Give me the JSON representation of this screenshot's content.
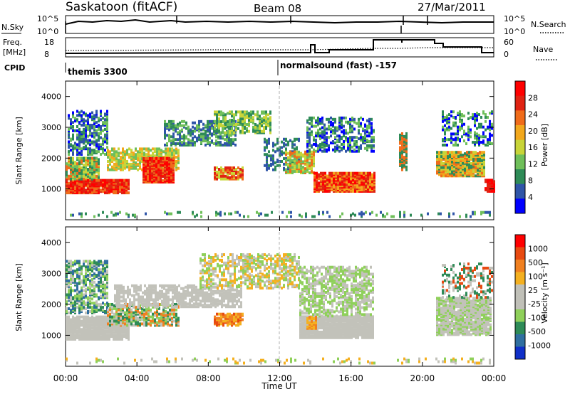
{
  "header": {
    "station": "Saskatoon (fitACF)",
    "beam": "Beam 08",
    "date": "27/Mar/2011"
  },
  "status_panels": {
    "nsky_label": "N.Sky",
    "nsky_ticks": [
      "10^5",
      "10^0"
    ],
    "nsearch_label": "N.Search",
    "nsearch_ticks": [
      "10^5",
      "10^0"
    ],
    "freq_label_1": "Freq.",
    "freq_label_2": "[MHz]",
    "freq_ticks": [
      "18",
      "8"
    ],
    "nave_label": "Nave",
    "nave_ticks": [
      "60",
      "0"
    ],
    "cpid_label": "CPID",
    "cpid_1": "themis 3300",
    "cpid_2": "normalsound (fast) -157"
  },
  "chart_data": [
    {
      "type": "heatmap",
      "name": "power",
      "ylabel": "Slant Range [km]",
      "y_ticks": [
        "1000",
        "2000",
        "3000",
        "4000"
      ],
      "ylim": [
        0,
        4500
      ],
      "colorbar_label": "Power [dB]",
      "colorbar_ticks": [
        "28",
        "24",
        "20",
        "16",
        "12",
        "8",
        "4"
      ],
      "colors": [
        "#0000ff",
        "#2f55a8",
        "#2e8b57",
        "#6fbf5a",
        "#c8d438",
        "#f2a81d",
        "#f06c1a",
        "#e02312",
        "#ff0000"
      ]
    },
    {
      "type": "heatmap",
      "name": "velocity",
      "ylabel": "Slant Range [km]",
      "y_ticks": [
        "1000",
        "2000",
        "3000",
        "4000"
      ],
      "ylim": [
        0,
        4500
      ],
      "colorbar_label": "Velocity [m s⁻¹]",
      "colorbar_ticks": [
        "1000",
        "500",
        "100",
        "25",
        "-25",
        "-100",
        "-500",
        "-1000"
      ],
      "colors": [
        "#1030c8",
        "#2f6fa0",
        "#2e8b57",
        "#8fd05a",
        "#c0c0b8",
        "#c0c0b8",
        "#f4b020",
        "#f08020",
        "#e84a10",
        "#ff0000"
      ]
    }
  ],
  "x_axis": {
    "ticks": [
      "00:00",
      "04:00",
      "08:00",
      "12:00",
      "16:00",
      "20:00",
      "00:00"
    ],
    "label": "Time UT"
  }
}
